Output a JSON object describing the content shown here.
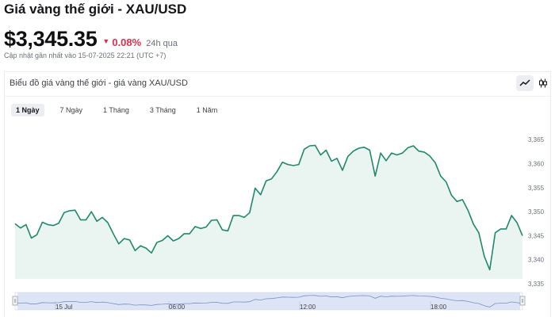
{
  "header": {
    "title": "Giá vàng thế giới - XAU/USD",
    "price": "$3,345.35",
    "change": "0.08%",
    "period": "24h qua",
    "updated": "Cập nhật gần nhất vào 15-07-2025 22:21 (UTC +7)"
  },
  "colors": {
    "line": "#1f8a6a",
    "area": "#eaf5f1",
    "negative": "#d9304f",
    "navigator": "#c5d2f1"
  },
  "panel": {
    "title": "Biểu đồ giá vàng thế giới - giá vàng XAU/USD",
    "tools": [
      {
        "icon": "line-chart-icon",
        "active": true
      },
      {
        "icon": "candlestick-icon",
        "active": false
      }
    ],
    "ranges": [
      {
        "label": "1 Ngày",
        "active": true
      },
      {
        "label": "7 Ngày",
        "active": false
      },
      {
        "label": "1 Tháng",
        "active": false
      },
      {
        "label": "3 Tháng",
        "active": false
      },
      {
        "label": "1 Năm",
        "active": false
      }
    ]
  },
  "navigator": {
    "labels": [
      "15 Jul",
      "06:00",
      "12:00",
      "18:00"
    ]
  },
  "chart_data": {
    "type": "area",
    "title": "",
    "xlabel": "",
    "ylabel": "",
    "ylim": [
      3335,
      3367
    ],
    "yticks": [
      3335,
      3340,
      3345,
      3350,
      3355,
      3360,
      3365
    ],
    "ytick_labels": [
      "3,335",
      "3,340",
      "3,345",
      "3,350",
      "3,355",
      "3,360",
      "3,365"
    ],
    "grid": false,
    "legend": "none",
    "series": [
      {
        "values": [
          3347.5,
          3346.6,
          3347.3,
          3344.5,
          3345.2,
          3347.8,
          3347.3,
          3347.1,
          3347.6,
          3349.8,
          3350.2,
          3350.3,
          3348.3,
          3348.3,
          3350.0,
          3348.0,
          3348.8,
          3347.7,
          3345.4,
          3343.3,
          3344.4,
          3344.1,
          3341.9,
          3342.9,
          3342.4,
          3341.4,
          3343.6,
          3344.0,
          3345.0,
          3343.9,
          3344.4,
          3345.4,
          3345.4,
          3346.9,
          3346.5,
          3346.8,
          3348.2,
          3348.3,
          3346.2,
          3346.0,
          3349.2,
          3349.2,
          3348.8,
          3349.8,
          3354.9,
          3353.5,
          3356.4,
          3356.8,
          3358.3,
          3360.3,
          3359.8,
          3359.6,
          3359.8,
          3363.0,
          3363.7,
          3363.8,
          3361.8,
          3362.8,
          3360.5,
          3361.1,
          3358.6,
          3361.5,
          3362.6,
          3363.2,
          3363.4,
          3362.8,
          3357.4,
          3362.2,
          3360.6,
          3362.2,
          3361.8,
          3362.2,
          3363.3,
          3363.7,
          3362.6,
          3362.4,
          3361.6,
          3360.2,
          3357.4,
          3356.2,
          3353.4,
          3352.1,
          3352.5,
          3350.3,
          3347.4,
          3345.6,
          3340.7,
          3337.9,
          3345.6,
          3346.4,
          3346.4,
          3349.2,
          3347.7,
          3345.0
        ]
      }
    ]
  }
}
